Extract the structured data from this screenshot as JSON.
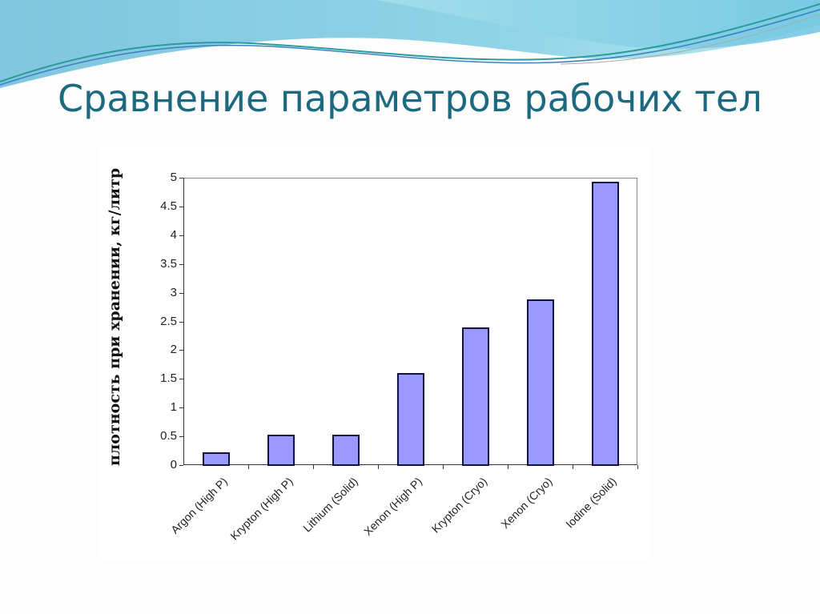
{
  "slide": {
    "title": "Сравнение параметров рабочих тел",
    "colors": {
      "title": "#1d6a80",
      "bar_fill": "#9999ff",
      "bar_border": "#111144",
      "wave_light": "#9fdbe8",
      "wave_dark": "#5cb8d6"
    }
  },
  "chart_data": {
    "type": "bar",
    "title": "",
    "xlabel": "",
    "ylabel": "плотность при хранении, кг/литр",
    "ylim": [
      0,
      5
    ],
    "yticks": [
      "0",
      "0.5",
      "1",
      "1.5",
      "2",
      "2.5",
      "3",
      "3.5",
      "4",
      "4.5",
      "5"
    ],
    "grid": false,
    "legend": null,
    "categories": [
      "Argon (High P)",
      "Krypton (High P)",
      "Lithium  (Solid)",
      "Xenon (High P)",
      "Krypton (Cryo)",
      "Xenon (Cryo)",
      "Iodine (Solid)"
    ],
    "values": [
      0.22,
      0.53,
      0.53,
      1.6,
      2.4,
      2.88,
      4.93
    ]
  }
}
